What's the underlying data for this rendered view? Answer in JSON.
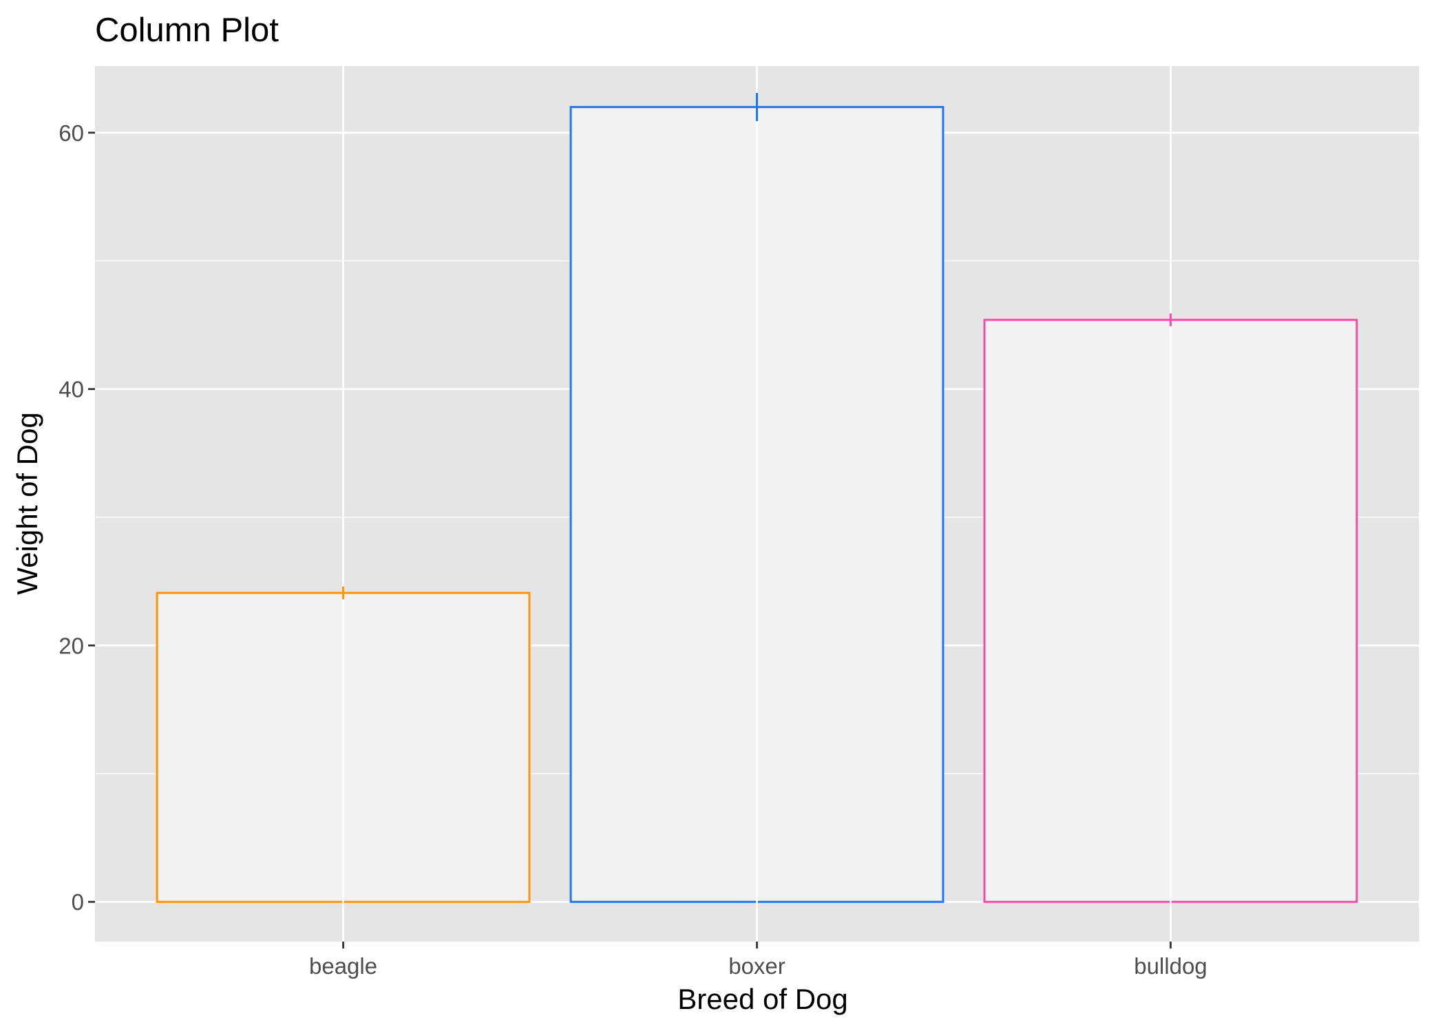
{
  "chart_data": {
    "type": "bar",
    "title": "Column Plot",
    "xlabel": "Breed of Dog",
    "ylabel": "Weight of Dog",
    "categories": [
      "beagle",
      "boxer",
      "bulldog"
    ],
    "values": [
      24.1,
      62.0,
      45.4
    ],
    "error_bars": [
      {
        "low": 23.6,
        "high": 24.6
      },
      {
        "low": 60.9,
        "high": 63.1
      },
      {
        "low": 44.9,
        "high": 45.9
      }
    ],
    "bar_colors": [
      "#FF9500",
      "#1F77F0",
      "#F24CAB"
    ],
    "bar_fill": "#F2F2F2",
    "panel_background": "#E5E5E5",
    "gridline_color": "#FFFFFF",
    "ylim": [
      -3.1,
      65.2
    ],
    "yticks": [
      0,
      20,
      40,
      60
    ],
    "grid": true,
    "legend": "none"
  }
}
